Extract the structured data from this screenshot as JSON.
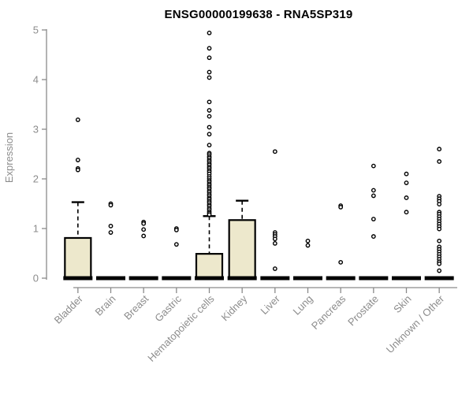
{
  "chart_data": {
    "type": "boxplot",
    "title": "ENSG00000199638 - RNA5SP319",
    "ylabel": "Expression",
    "xlabel": "",
    "ylim": [
      0,
      5
    ],
    "yticks": [
      0,
      1,
      2,
      3,
      4,
      5
    ],
    "grid": false,
    "legend": "none",
    "box_fill": "#EDE8CC",
    "box_stroke": "#000000",
    "axis_color": "#8a8a8a",
    "label_color": "#8c8c8c",
    "title_color": "#000000",
    "categories": [
      {
        "label": "Bladder",
        "q1": 0,
        "median": 0,
        "q3": 0.81,
        "whisker_low": 0,
        "whisker_high": 1.53,
        "outliers": [
          3.19,
          2.38,
          2.21,
          2.18
        ]
      },
      {
        "label": "Brain",
        "q1": 0,
        "median": 0,
        "q3": 0,
        "whisker_low": 0,
        "whisker_high": 0,
        "outliers": [
          1.5,
          1.47,
          1.05,
          0.92
        ]
      },
      {
        "label": "Breast",
        "q1": 0,
        "median": 0,
        "q3": 0,
        "whisker_low": 0,
        "whisker_high": 0,
        "outliers": [
          1.13,
          1.1,
          0.98,
          0.85
        ]
      },
      {
        "label": "Gastric",
        "q1": 0,
        "median": 0,
        "q3": 0,
        "whisker_low": 0,
        "whisker_high": 0,
        "outliers": [
          1.0,
          0.97,
          0.68
        ]
      },
      {
        "label": "Hematopoietic cells",
        "q1": 0,
        "median": 0,
        "q3": 0.49,
        "whisker_low": 0,
        "whisker_high": 1.25,
        "outliers": [
          4.94,
          4.63,
          4.44,
          4.15,
          4.04,
          3.55,
          3.38,
          3.26,
          3.04,
          2.9,
          2.68,
          2.52,
          2.49,
          2.45,
          2.42,
          2.38,
          2.35,
          2.31,
          2.28,
          2.24,
          2.21,
          2.17,
          2.14,
          2.1,
          2.05,
          2.01,
          1.97,
          1.94,
          1.9,
          1.87,
          1.83,
          1.8,
          1.76,
          1.73,
          1.69,
          1.66,
          1.62,
          1.59,
          1.55,
          1.52,
          1.48,
          1.45,
          1.41,
          1.38,
          1.34,
          1.31,
          1.28
        ]
      },
      {
        "label": "Kidney",
        "q1": 0,
        "median": 0,
        "q3": 1.17,
        "whisker_low": 0,
        "whisker_high": 1.56,
        "outliers": []
      },
      {
        "label": "Liver",
        "q1": 0,
        "median": 0,
        "q3": 0,
        "whisker_low": 0,
        "whisker_high": 0,
        "outliers": [
          2.55,
          0.92,
          0.88,
          0.84,
          0.79,
          0.7,
          0.19
        ]
      },
      {
        "label": "Lung",
        "q1": 0,
        "median": 0,
        "q3": 0,
        "whisker_low": 0,
        "whisker_high": 0,
        "outliers": [
          0.75,
          0.66
        ]
      },
      {
        "label": "Pancreas",
        "q1": 0,
        "median": 0,
        "q3": 0,
        "whisker_low": 0,
        "whisker_high": 0,
        "outliers": [
          1.46,
          1.43,
          0.32
        ]
      },
      {
        "label": "Prostate",
        "q1": 0,
        "median": 0,
        "q3": 0,
        "whisker_low": 0,
        "whisker_high": 0,
        "outliers": [
          2.26,
          1.77,
          1.66,
          1.19,
          0.84
        ]
      },
      {
        "label": "Skin",
        "q1": 0,
        "median": 0,
        "q3": 0,
        "whisker_low": 0,
        "whisker_high": 0,
        "outliers": [
          2.1,
          1.92,
          1.62,
          1.33
        ]
      },
      {
        "label": "Unknown / Other",
        "q1": 0,
        "median": 0,
        "q3": 0,
        "whisker_low": 0,
        "whisker_high": 0,
        "outliers": [
          2.6,
          2.35,
          1.65,
          1.6,
          1.55,
          1.49,
          1.33,
          1.29,
          1.24,
          1.19,
          1.14,
          1.09,
          1.04,
          0.99,
          0.75,
          0.63,
          0.58,
          0.53,
          0.48,
          0.43,
          0.38,
          0.33,
          0.29,
          0.15
        ]
      }
    ]
  }
}
